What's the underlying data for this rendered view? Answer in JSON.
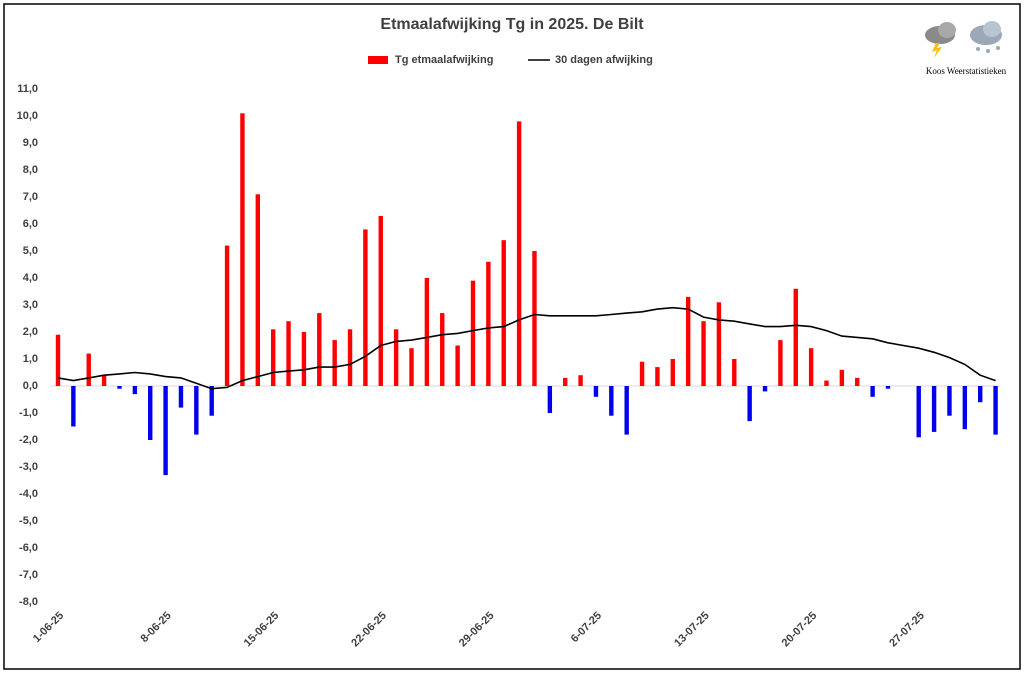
{
  "chart_data": {
    "type": "bar_line",
    "title": "Etmaalafwijking Tg in 2025. De Bilt",
    "credit": "Koos Weerstatistieken",
    "categories": [
      "1-06-25",
      null,
      null,
      null,
      null,
      null,
      null,
      "8-06-25",
      null,
      null,
      null,
      null,
      null,
      null,
      "15-06-25",
      null,
      null,
      null,
      null,
      null,
      null,
      "22-06-25",
      null,
      null,
      null,
      null,
      null,
      null,
      "29-06-25",
      null,
      null,
      null,
      null,
      null,
      null,
      "6-07-25",
      null,
      null,
      null,
      null,
      null,
      null,
      "13-07-25",
      null,
      null,
      null,
      null,
      null,
      null,
      "20-07-25",
      null,
      null,
      null,
      null,
      null,
      null,
      "27-07-25",
      null,
      null,
      null,
      null,
      null
    ],
    "series": [
      {
        "name": "Tg etmaalafwijking",
        "type": "bar",
        "color": "#ff0000",
        "negative_color": "#0000ee",
        "values": [
          1.9,
          -1.5,
          1.2,
          0.4,
          -0.1,
          -0.3,
          -2.0,
          -3.3,
          -0.8,
          -1.8,
          -1.1,
          5.2,
          10.1,
          7.1,
          2.1,
          2.4,
          2.0,
          2.7,
          1.7,
          2.1,
          5.8,
          6.3,
          2.1,
          1.4,
          4.0,
          2.7,
          1.5,
          3.9,
          4.6,
          5.4,
          9.8,
          5.0,
          -1.0,
          0.3,
          0.4,
          -0.4,
          -1.1,
          -1.8,
          0.9,
          0.7,
          1.0,
          3.3,
          2.4,
          3.1,
          1.0,
          -1.3,
          -0.2,
          1.7,
          3.6,
          1.4,
          0.2,
          0.6,
          0.3,
          -0.4,
          -0.1,
          0,
          -1.9,
          -1.7,
          -1.1,
          -1.6,
          -0.6,
          -1.8
        ]
      },
      {
        "name": "30 dagen afwijking",
        "type": "line",
        "color": "#000000",
        "values": [
          0.3,
          0.2,
          0.3,
          0.4,
          0.45,
          0.5,
          0.45,
          0.35,
          0.3,
          0.1,
          -0.1,
          -0.05,
          0.2,
          0.35,
          0.5,
          0.55,
          0.6,
          0.7,
          0.7,
          0.8,
          1.1,
          1.5,
          1.65,
          1.7,
          1.8,
          1.9,
          1.95,
          2.05,
          2.15,
          2.2,
          2.45,
          2.65,
          2.6,
          2.6,
          2.6,
          2.6,
          2.65,
          2.7,
          2.75,
          2.85,
          2.9,
          2.85,
          2.55,
          2.45,
          2.4,
          2.3,
          2.2,
          2.2,
          2.25,
          2.2,
          2.05,
          1.85,
          1.8,
          1.75,
          1.6,
          1.5,
          1.4,
          1.25,
          1.05,
          0.8,
          0.4,
          0.2
        ]
      }
    ],
    "ylim": [
      -8,
      11
    ],
    "yticks": [
      {
        "value": -8,
        "label": "-8,0"
      },
      {
        "value": -7,
        "label": "-7,0"
      },
      {
        "value": -6,
        "label": "-6,0"
      },
      {
        "value": -5,
        "label": "-5,0"
      },
      {
        "value": -4,
        "label": "-4,0"
      },
      {
        "value": -3,
        "label": "-3,0"
      },
      {
        "value": -2,
        "label": "-2,0"
      },
      {
        "value": -1,
        "label": "-1,0"
      },
      {
        "value": 0,
        "label": "0,0"
      },
      {
        "value": 1,
        "label": "1,0"
      },
      {
        "value": 2,
        "label": "2,0"
      },
      {
        "value": 3,
        "label": "3,0"
      },
      {
        "value": 4,
        "label": "4,0"
      },
      {
        "value": 5,
        "label": "5,0"
      },
      {
        "value": 6,
        "label": "6,0"
      },
      {
        "value": 7,
        "label": "7,0"
      },
      {
        "value": 8,
        "label": "8,0"
      },
      {
        "value": 9,
        "label": "9,0"
      },
      {
        "value": 10,
        "label": "10,0"
      },
      {
        "value": 11,
        "label": "11,0"
      }
    ],
    "grid": false,
    "legend": "top"
  }
}
